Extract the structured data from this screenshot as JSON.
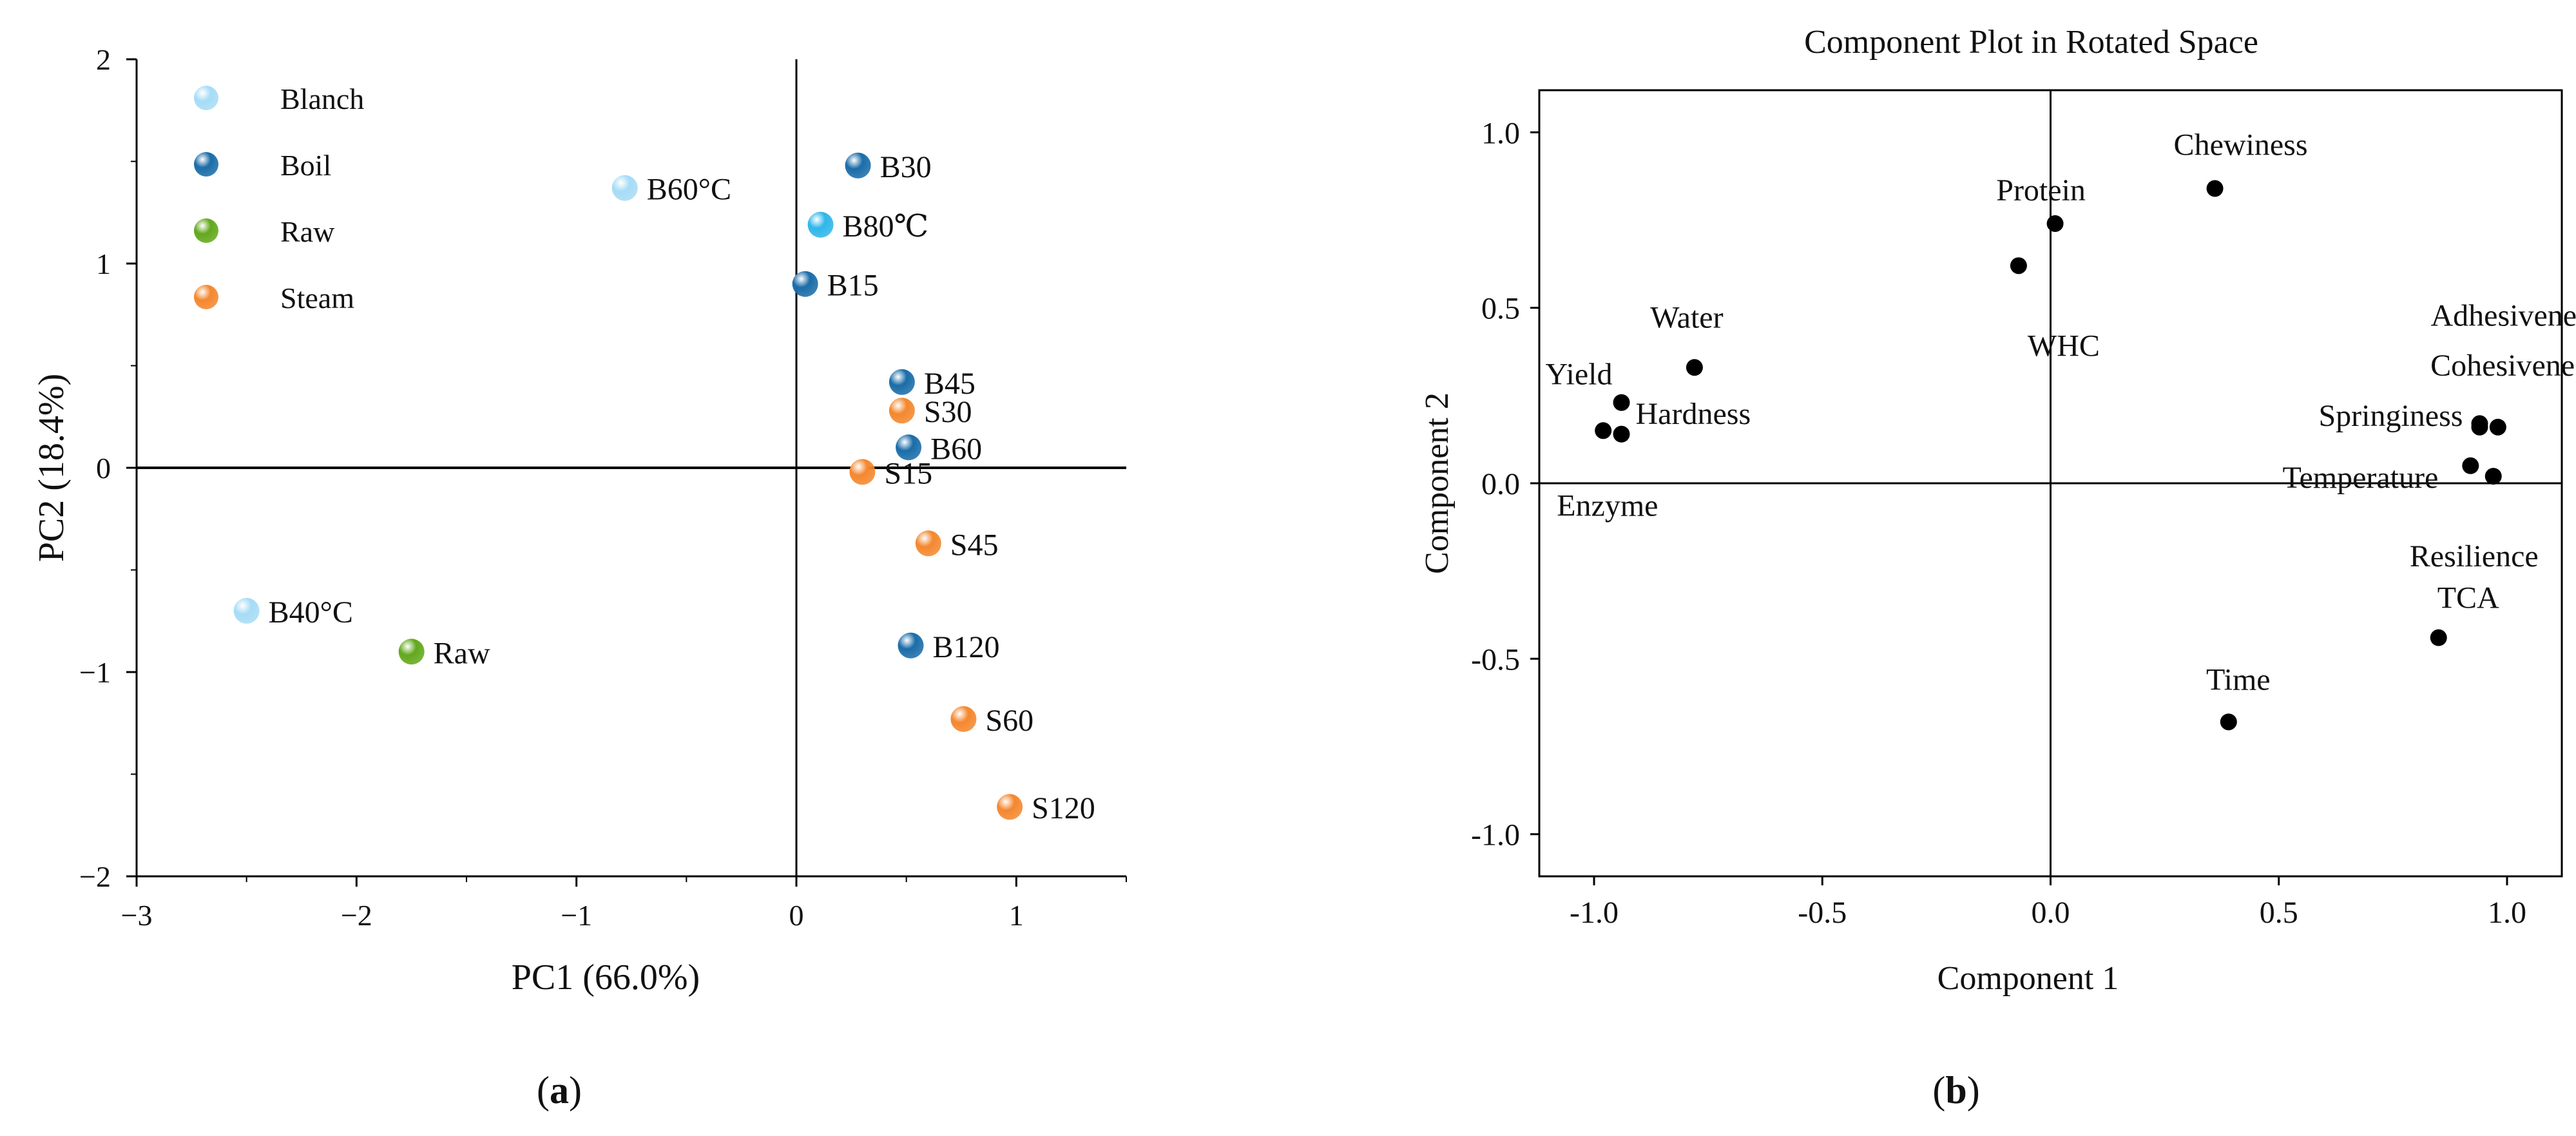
{
  "chart_data": [
    {
      "type": "scatter",
      "title": "",
      "xlabel": "PC1 (66.0%)",
      "ylabel": "PC2 (18.4%)",
      "xlim": [
        -3,
        1.5
      ],
      "ylim": [
        -2,
        2
      ],
      "xticks": [
        -3,
        -2,
        -1,
        0,
        1
      ],
      "yticks": [
        -2,
        -1,
        0,
        1,
        2
      ],
      "xtick_labels": [
        "−3",
        "−2",
        "−1",
        "0",
        "1"
      ],
      "ytick_labels": [
        "−2",
        "−1",
        "0",
        "1",
        "2"
      ],
      "grid": false,
      "legend_position": "top-left",
      "legend": [
        {
          "name": "Blanch",
          "color": "#a6dcf6"
        },
        {
          "name": "Boil",
          "color": "#1a6ca8"
        },
        {
          "name": "Raw",
          "color": "#62a81c"
        },
        {
          "name": "Steam",
          "color": "#f4872e"
        }
      ],
      "points": [
        {
          "label": "B60°C",
          "group": "Blanch",
          "x": -0.78,
          "y": 1.37,
          "color": "#a6dcf6"
        },
        {
          "label": "B30",
          "group": "Boil",
          "x": 0.28,
          "y": 1.48,
          "color": "#1a6ca8"
        },
        {
          "label": "B80℃",
          "group": "Blanch",
          "x": 0.11,
          "y": 1.19,
          "color": "#2eb6ea"
        },
        {
          "label": "B15",
          "group": "Boil",
          "x": 0.04,
          "y": 0.9,
          "color": "#1a6ca8"
        },
        {
          "label": "B45",
          "group": "Boil",
          "x": 0.48,
          "y": 0.42,
          "color": "#1a6ca8"
        },
        {
          "label": "S30",
          "group": "Steam",
          "x": 0.48,
          "y": 0.28,
          "color": "#f4872e"
        },
        {
          "label": "B60",
          "group": "Boil",
          "x": 0.51,
          "y": 0.1,
          "color": "#1a6ca8"
        },
        {
          "label": "S15",
          "group": "Steam",
          "x": 0.3,
          "y": -0.02,
          "color": "#f4872e"
        },
        {
          "label": "S45",
          "group": "Steam",
          "x": 0.6,
          "y": -0.37,
          "color": "#f4872e"
        },
        {
          "label": "B40°C",
          "group": "Blanch",
          "x": -2.5,
          "y": -0.7,
          "color": "#a6dcf6"
        },
        {
          "label": "Raw",
          "group": "Raw",
          "x": -1.75,
          "y": -0.9,
          "color": "#62a81c"
        },
        {
          "label": "B120",
          "group": "Boil",
          "x": 0.52,
          "y": -0.87,
          "color": "#1a6ca8"
        },
        {
          "label": "S60",
          "group": "Steam",
          "x": 0.76,
          "y": -1.23,
          "color": "#f4872e"
        },
        {
          "label": "S120",
          "group": "Steam",
          "x": 0.97,
          "y": -1.66,
          "color": "#f4872e"
        }
      ],
      "caption": "(a)"
    },
    {
      "type": "scatter",
      "title": "Component Plot in Rotated Space",
      "xlabel": "Component 1",
      "ylabel": "Component 2",
      "xlim": [
        -1.12,
        1.12
      ],
      "ylim": [
        -1.12,
        1.12
      ],
      "xticks": [
        -1.0,
        -0.5,
        0.0,
        0.5,
        1.0
      ],
      "yticks": [
        -1.0,
        -0.5,
        0.0,
        0.5,
        1.0
      ],
      "xtick_labels": [
        "-1.0",
        "-0.5",
        "0.0",
        "0.5",
        "1.0"
      ],
      "ytick_labels": [
        "-1.0",
        "-0.5",
        "0.0",
        "0.5",
        "1.0"
      ],
      "grid": false,
      "points": [
        {
          "label": "Chewiness",
          "x": 0.36,
          "y": 0.84
        },
        {
          "label": "Protein",
          "x": 0.01,
          "y": 0.74
        },
        {
          "label": "WHC",
          "x": -0.07,
          "y": 0.62
        },
        {
          "label": "Water",
          "x": -0.78,
          "y": 0.33
        },
        {
          "label": "Yield",
          "x": -0.94,
          "y": 0.23
        },
        {
          "label": "Hardness",
          "x": -0.94,
          "y": 0.14
        },
        {
          "label": "Enzyme",
          "x": -0.98,
          "y": 0.15
        },
        {
          "label": "Adhesiveness",
          "x": 0.94,
          "y": 0.17
        },
        {
          "label": "Cohesiveness",
          "x": 0.98,
          "y": 0.16
        },
        {
          "label": "Springiness",
          "x": 0.94,
          "y": 0.16
        },
        {
          "label": "Temperature",
          "x": 0.92,
          "y": 0.05
        },
        {
          "label": "Resilience",
          "x": 0.97,
          "y": 0.02
        },
        {
          "label": "TCA",
          "x": 0.85,
          "y": -0.44
        },
        {
          "label": "Time",
          "x": 0.39,
          "y": -0.68
        }
      ],
      "caption": "(b)"
    }
  ]
}
